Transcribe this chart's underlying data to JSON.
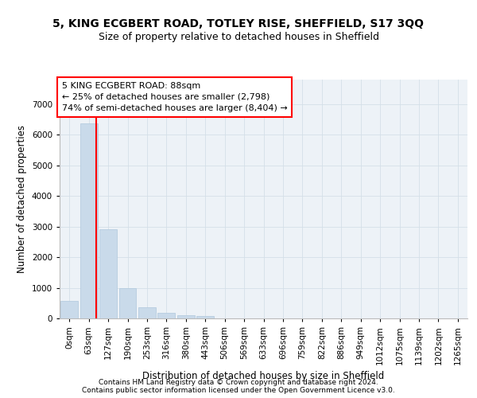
{
  "title1": "5, KING ECGBERT ROAD, TOTLEY RISE, SHEFFIELD, S17 3QQ",
  "title2": "Size of property relative to detached houses in Sheffield",
  "xlabel": "Distribution of detached houses by size in Sheffield",
  "ylabel": "Number of detached properties",
  "footer1": "Contains HM Land Registry data © Crown copyright and database right 2024.",
  "footer2": "Contains public sector information licensed under the Open Government Licence v3.0.",
  "bar_labels": [
    "0sqm",
    "63sqm",
    "127sqm",
    "190sqm",
    "253sqm",
    "316sqm",
    "380sqm",
    "443sqm",
    "506sqm",
    "569sqm",
    "633sqm",
    "696sqm",
    "759sqm",
    "822sqm",
    "886sqm",
    "949sqm",
    "1012sqm",
    "1075sqm",
    "1139sqm",
    "1202sqm",
    "1265sqm"
  ],
  "bar_values": [
    570,
    6380,
    2920,
    990,
    355,
    175,
    100,
    80,
    0,
    0,
    0,
    0,
    0,
    0,
    0,
    0,
    0,
    0,
    0,
    0,
    0
  ],
  "bar_color": "#c9daea",
  "bar_edge_color": "#b0c8dc",
  "grid_color": "#d4dfe8",
  "background_color": "#edf2f7",
  "property_line_x": 1.38,
  "annotation_text": "5 KING ECGBERT ROAD: 88sqm\n← 25% of detached houses are smaller (2,798)\n74% of semi-detached houses are larger (8,404) →",
  "annotation_box_color": "white",
  "annotation_box_edge": "red",
  "ylim": [
    0,
    7800
  ],
  "yticks": [
    0,
    1000,
    2000,
    3000,
    4000,
    5000,
    6000,
    7000
  ],
  "title1_fontsize": 10,
  "title2_fontsize": 9,
  "xlabel_fontsize": 8.5,
  "ylabel_fontsize": 8.5,
  "tick_fontsize": 7.5,
  "annotation_fontsize": 8,
  "footer_fontsize": 6.5
}
